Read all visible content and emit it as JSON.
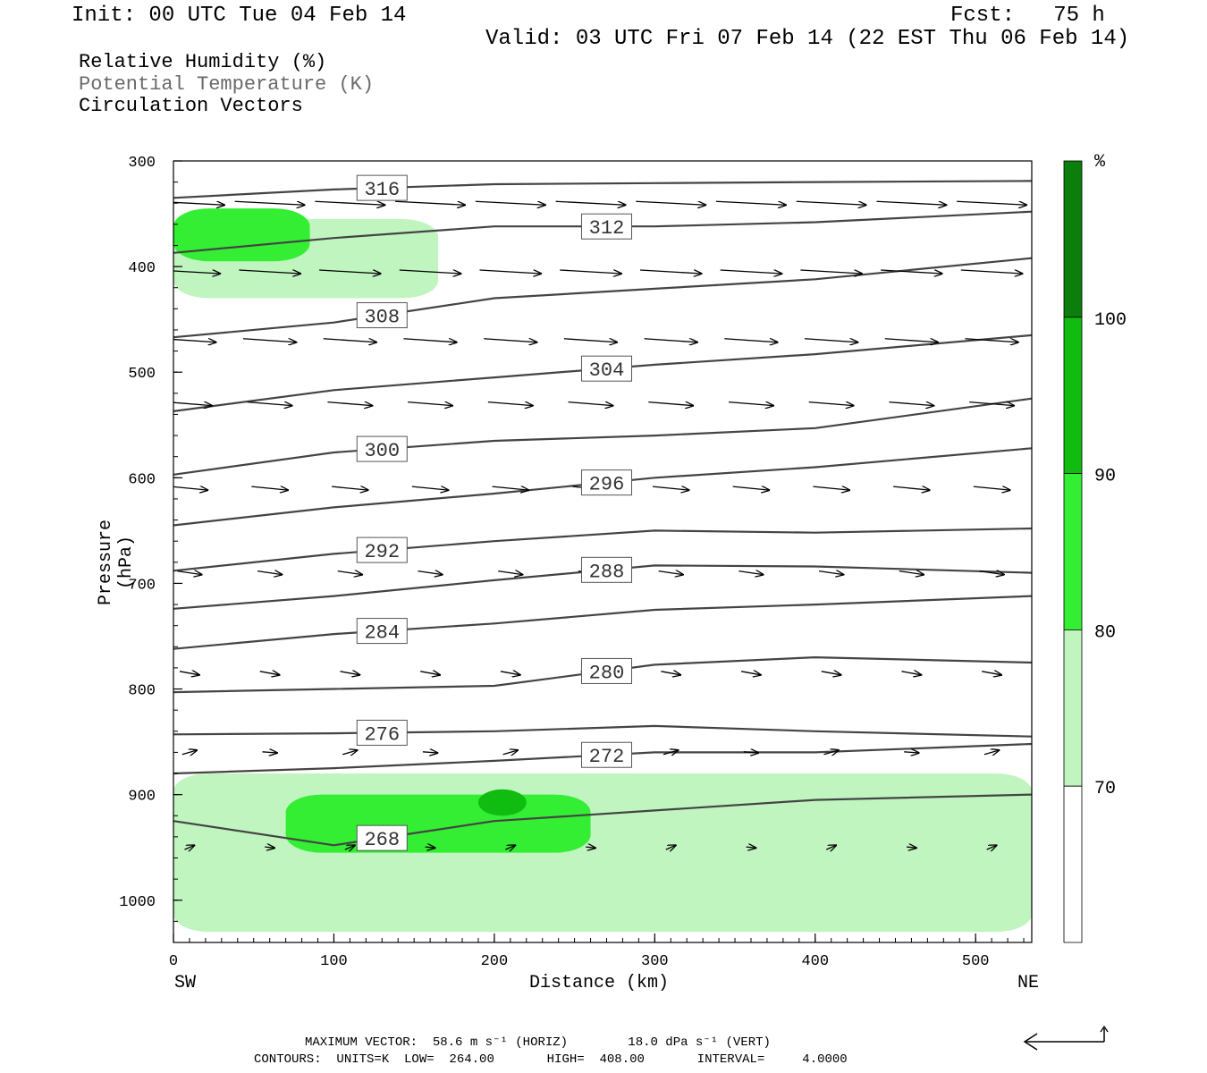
{
  "header": {
    "init": "Init: 00 UTC Tue 04 Feb 14",
    "fcst": "Fcst:   75 h",
    "valid": "Valid: 03 UTC Fri 07 Feb 14 (22 EST Thu 06 Feb 14)"
  },
  "legend": {
    "rh": "Relative Humidity (%)",
    "theta": "Potential Temperature (K)",
    "vectors": "Circulation Vectors"
  },
  "footer": {
    "max_vector": "MAXIMUM VECTOR:  58.6 m s⁻¹ (HORIZ)        18.0 dPa s⁻¹ (VERT)",
    "contours": "CONTOURS:  UNITS=K  LOW=  264.00       HIGH=  408.00       INTERVAL=     4.0000"
  },
  "colors": {
    "rh_70": "#c0f5c0",
    "rh_80": "#33ee33",
    "rh_90": "#0fbc0f",
    "rh_100": "#0c7e0c",
    "contour": "#444444"
  },
  "chart_data": {
    "type": "cross-section",
    "xlabel": "Distance (km)",
    "ylabel": "Pressure (hPa)",
    "x_left_label": "SW",
    "x_right_label": "NE",
    "xlim": [
      0,
      535
    ],
    "ylim": [
      1040,
      300
    ],
    "x_ticks": [
      0,
      100,
      200,
      300,
      400,
      500
    ],
    "y_ticks": [
      300,
      400,
      500,
      600,
      700,
      800,
      900,
      1000
    ],
    "colorbar": {
      "unit": "%",
      "levels": [
        70,
        80,
        90,
        100
      ]
    },
    "theta_contours": [
      {
        "level": 316,
        "points": [
          [
            0,
            335
          ],
          [
            100,
            327
          ],
          [
            200,
            322
          ],
          [
            300,
            321
          ],
          [
            400,
            320
          ],
          [
            535,
            319
          ]
        ]
      },
      {
        "level": 312,
        "points": [
          [
            0,
            387
          ],
          [
            100,
            373
          ],
          [
            200,
            362
          ],
          [
            300,
            362
          ],
          [
            400,
            358
          ],
          [
            535,
            348
          ]
        ]
      },
      {
        "level": 308,
        "points": [
          [
            0,
            467
          ],
          [
            100,
            453
          ],
          [
            200,
            430
          ],
          [
            300,
            421
          ],
          [
            400,
            412
          ],
          [
            535,
            392
          ]
        ]
      },
      {
        "level": 304,
        "points": [
          [
            0,
            537
          ],
          [
            100,
            517
          ],
          [
            200,
            505
          ],
          [
            300,
            493
          ],
          [
            400,
            483
          ],
          [
            535,
            465
          ]
        ]
      },
      {
        "level": 300,
        "points": [
          [
            0,
            597
          ],
          [
            100,
            576
          ],
          [
            200,
            565
          ],
          [
            300,
            560
          ],
          [
            400,
            553
          ],
          [
            535,
            525
          ]
        ]
      },
      {
        "level": 296,
        "points": [
          [
            0,
            645
          ],
          [
            100,
            628
          ],
          [
            200,
            615
          ],
          [
            300,
            600
          ],
          [
            400,
            590
          ],
          [
            535,
            572
          ]
        ]
      },
      {
        "level": 292,
        "points": [
          [
            0,
            688
          ],
          [
            100,
            672
          ],
          [
            200,
            660
          ],
          [
            300,
            650
          ],
          [
            400,
            652
          ],
          [
            535,
            648
          ]
        ]
      },
      {
        "level": 288,
        "points": [
          [
            0,
            724
          ],
          [
            100,
            712
          ],
          [
            200,
            697
          ],
          [
            300,
            683
          ],
          [
            400,
            684
          ],
          [
            535,
            690
          ]
        ]
      },
      {
        "level": 284,
        "points": [
          [
            0,
            762
          ],
          [
            100,
            748
          ],
          [
            200,
            738
          ],
          [
            300,
            725
          ],
          [
            400,
            720
          ],
          [
            535,
            712
          ]
        ]
      },
      {
        "level": 280,
        "points": [
          [
            0,
            803
          ],
          [
            100,
            800
          ],
          [
            200,
            797
          ],
          [
            300,
            777
          ],
          [
            400,
            770
          ],
          [
            535,
            775
          ]
        ]
      },
      {
        "level": 276,
        "points": [
          [
            0,
            843
          ],
          [
            100,
            842
          ],
          [
            200,
            840
          ],
          [
            300,
            835
          ],
          [
            400,
            840
          ],
          [
            535,
            845
          ]
        ]
      },
      {
        "level": 272,
        "points": [
          [
            0,
            880
          ],
          [
            100,
            875
          ],
          [
            200,
            868
          ],
          [
            300,
            860
          ],
          [
            400,
            860
          ],
          [
            535,
            852
          ]
        ]
      },
      {
        "level": 268,
        "points": [
          [
            0,
            925
          ],
          [
            100,
            948
          ],
          [
            200,
            925
          ],
          [
            300,
            915
          ],
          [
            400,
            905
          ],
          [
            535,
            900
          ]
        ]
      }
    ],
    "rh_shading": [
      {
        "level": 70,
        "region": "upper-left",
        "x": [
          0,
          165
        ],
        "p": [
          355,
          430
        ]
      },
      {
        "level": 80,
        "region": "upper-left",
        "x": [
          0,
          85
        ],
        "p": [
          345,
          395
        ]
      },
      {
        "level": 70,
        "region": "low-levels",
        "x": [
          0,
          535
        ],
        "p": [
          880,
          1030
        ]
      },
      {
        "level": 80,
        "region": "low-levels",
        "x": [
          70,
          260
        ],
        "p": [
          900,
          955
        ]
      },
      {
        "level": 90,
        "region": "low-levels",
        "x": [
          190,
          220
        ],
        "p": [
          895,
          920
        ]
      }
    ],
    "max_vector": {
      "horiz_m_s": 58.6,
      "vert_dPa_s": 18.0
    },
    "contour_stats": {
      "units": "K",
      "low": 264.0,
      "high": 408.0,
      "interval": 4.0
    }
  }
}
